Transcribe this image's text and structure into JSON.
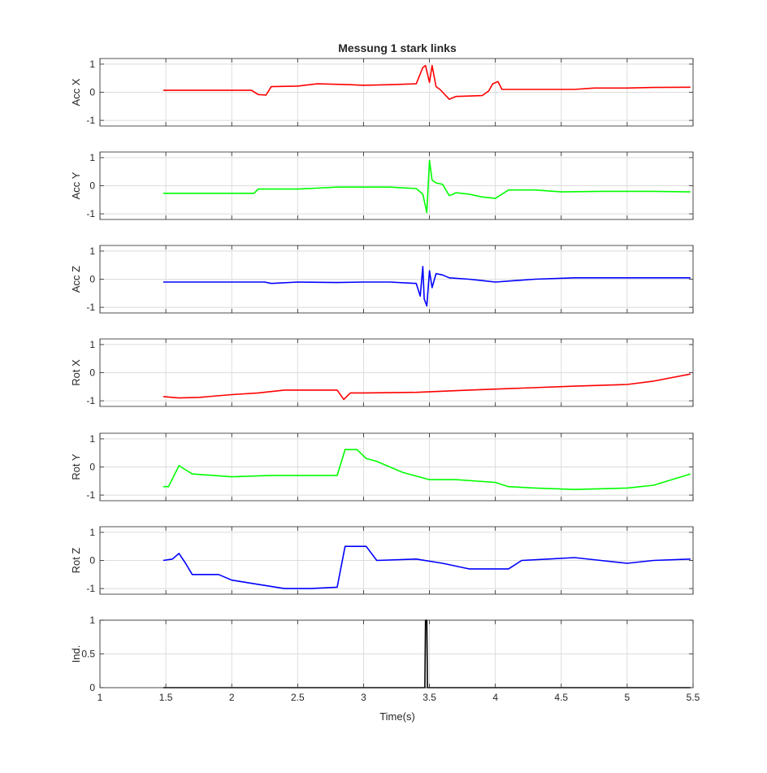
{
  "figure": {
    "title": "Messung 1 stark links",
    "xlabel": "Time(s)",
    "background": "#ffffff",
    "axes_color": "#262626",
    "grid_color": "#dcdcdc"
  },
  "chart_data": [
    {
      "type": "line",
      "ylabel": "Acc X",
      "color": "#ff0000",
      "xlim": [
        1,
        5.5
      ],
      "ylim": [
        -1.2,
        1.2
      ],
      "x_ticks": [
        1,
        1.5,
        2,
        2.5,
        3,
        3.5,
        4,
        4.5,
        5,
        5.5
      ],
      "y_ticks": [
        -1,
        0,
        1
      ],
      "y_tick_labels": [
        "-1",
        "0",
        "1"
      ],
      "x_tick_labels": [],
      "grid": true,
      "series": [
        {
          "x": [
            1.48,
            1.9,
            2.15,
            2.2,
            2.26,
            2.3,
            2.5,
            2.65,
            2.9,
            3.0,
            3.2,
            3.4,
            3.45,
            3.47,
            3.5,
            3.52,
            3.55,
            3.58,
            3.65,
            3.7,
            3.9,
            3.95,
            3.98,
            4.02,
            4.05,
            4.2,
            4.6,
            4.75,
            5.0,
            5.2,
            5.48
          ],
          "y": [
            0.07,
            0.07,
            0.07,
            -0.08,
            -0.1,
            0.2,
            0.22,
            0.3,
            0.27,
            0.25,
            0.27,
            0.3,
            0.88,
            0.95,
            0.35,
            0.95,
            0.2,
            0.1,
            -0.25,
            -0.15,
            -0.12,
            0.05,
            0.3,
            0.38,
            0.1,
            0.1,
            0.1,
            0.15,
            0.15,
            0.17,
            0.18
          ]
        }
      ]
    },
    {
      "type": "line",
      "ylabel": "Acc Y",
      "color": "#00ff00",
      "xlim": [
        1,
        5.5
      ],
      "ylim": [
        -1.2,
        1.2
      ],
      "x_ticks": [
        1,
        1.5,
        2,
        2.5,
        3,
        3.5,
        4,
        4.5,
        5,
        5.5
      ],
      "y_ticks": [
        -1,
        0,
        1
      ],
      "y_tick_labels": [
        "-1",
        "0",
        "1"
      ],
      "x_tick_labels": [],
      "grid": true,
      "series": [
        {
          "x": [
            1.48,
            2.0,
            2.17,
            2.2,
            2.5,
            2.8,
            3.0,
            3.2,
            3.4,
            3.45,
            3.48,
            3.5,
            3.52,
            3.55,
            3.6,
            3.65,
            3.68,
            3.7,
            3.8,
            3.9,
            4.0,
            4.1,
            4.3,
            4.5,
            4.8,
            5.0,
            5.2,
            5.48
          ],
          "y": [
            -0.27,
            -0.27,
            -0.27,
            -0.12,
            -0.12,
            -0.05,
            -0.05,
            -0.05,
            -0.1,
            -0.3,
            -0.95,
            0.9,
            0.2,
            0.1,
            0.05,
            -0.35,
            -0.3,
            -0.25,
            -0.3,
            -0.4,
            -0.45,
            -0.15,
            -0.15,
            -0.22,
            -0.2,
            -0.2,
            -0.2,
            -0.22
          ]
        }
      ]
    },
    {
      "type": "line",
      "ylabel": "Acc Z",
      "color": "#0000ff",
      "xlim": [
        1,
        5.5
      ],
      "ylim": [
        -1.2,
        1.2
      ],
      "x_ticks": [
        1,
        1.5,
        2,
        2.5,
        3,
        3.5,
        4,
        4.5,
        5,
        5.5
      ],
      "y_ticks": [
        -1,
        0,
        1
      ],
      "y_tick_labels": [
        "-1",
        "0",
        "1"
      ],
      "x_tick_labels": [],
      "grid": true,
      "series": [
        {
          "x": [
            1.48,
            2.0,
            2.25,
            2.3,
            2.5,
            2.8,
            3.0,
            3.2,
            3.4,
            3.43,
            3.45,
            3.46,
            3.48,
            3.5,
            3.52,
            3.55,
            3.6,
            3.65,
            3.8,
            3.9,
            4.0,
            4.3,
            4.6,
            5.0,
            5.48
          ],
          "y": [
            -0.1,
            -0.1,
            -0.1,
            -0.15,
            -0.1,
            -0.12,
            -0.1,
            -0.1,
            -0.15,
            -0.6,
            0.45,
            -0.7,
            -0.95,
            0.3,
            -0.3,
            0.2,
            0.15,
            0.05,
            0.0,
            -0.05,
            -0.1,
            0.0,
            0.05,
            0.05,
            0.05
          ]
        }
      ]
    },
    {
      "type": "line",
      "ylabel": "Rot X",
      "color": "#ff0000",
      "xlim": [
        1,
        5.5
      ],
      "ylim": [
        -1.2,
        1.2
      ],
      "x_ticks": [
        1,
        1.5,
        2,
        2.5,
        3,
        3.5,
        4,
        4.5,
        5,
        5.5
      ],
      "y_ticks": [
        -1,
        0,
        1
      ],
      "y_tick_labels": [
        "-1",
        "0",
        "1"
      ],
      "x_tick_labels": [],
      "grid": true,
      "series": [
        {
          "x": [
            1.48,
            1.6,
            1.75,
            2.0,
            2.2,
            2.4,
            2.8,
            2.85,
            2.9,
            3.0,
            3.4,
            3.8,
            4.2,
            4.6,
            5.0,
            5.2,
            5.48
          ],
          "y": [
            -0.85,
            -0.9,
            -0.88,
            -0.78,
            -0.72,
            -0.62,
            -0.62,
            -0.95,
            -0.72,
            -0.72,
            -0.7,
            -0.62,
            -0.55,
            -0.48,
            -0.42,
            -0.3,
            -0.05
          ]
        }
      ]
    },
    {
      "type": "line",
      "ylabel": "Rot Y",
      "color": "#00ff00",
      "xlim": [
        1,
        5.5
      ],
      "ylim": [
        -1.2,
        1.2
      ],
      "x_ticks": [
        1,
        1.5,
        2,
        2.5,
        3,
        3.5,
        4,
        4.5,
        5,
        5.5
      ],
      "y_ticks": [
        -1,
        0,
        1
      ],
      "y_tick_labels": [
        "-1",
        "0",
        "1"
      ],
      "x_tick_labels": [],
      "grid": true,
      "series": [
        {
          "x": [
            1.48,
            1.52,
            1.6,
            1.65,
            1.7,
            2.0,
            2.3,
            2.8,
            2.86,
            2.95,
            3.02,
            3.1,
            3.2,
            3.3,
            3.5,
            3.7,
            4.0,
            4.1,
            4.3,
            4.6,
            5.0,
            5.2,
            5.48
          ],
          "y": [
            -0.7,
            -0.7,
            0.05,
            -0.1,
            -0.25,
            -0.35,
            -0.3,
            -0.3,
            0.62,
            0.62,
            0.3,
            0.2,
            0.0,
            -0.2,
            -0.45,
            -0.45,
            -0.55,
            -0.7,
            -0.75,
            -0.8,
            -0.75,
            -0.65,
            -0.25
          ]
        }
      ]
    },
    {
      "type": "line",
      "ylabel": "Rot Z",
      "color": "#0000ff",
      "xlim": [
        1,
        5.5
      ],
      "ylim": [
        -1.2,
        1.2
      ],
      "x_ticks": [
        1,
        1.5,
        2,
        2.5,
        3,
        3.5,
        4,
        4.5,
        5,
        5.5
      ],
      "y_ticks": [
        -1,
        0,
        1
      ],
      "y_tick_labels": [
        "-1",
        "0",
        "1"
      ],
      "x_tick_labels": [],
      "grid": true,
      "series": [
        {
          "x": [
            1.48,
            1.55,
            1.6,
            1.65,
            1.7,
            1.9,
            2.0,
            2.2,
            2.4,
            2.6,
            2.8,
            2.86,
            3.02,
            3.1,
            3.4,
            3.6,
            3.8,
            4.1,
            4.2,
            4.4,
            4.6,
            4.8,
            5.0,
            5.2,
            5.48
          ],
          "y": [
            0.0,
            0.05,
            0.25,
            -0.1,
            -0.5,
            -0.5,
            -0.7,
            -0.85,
            -1.0,
            -1.0,
            -0.95,
            0.5,
            0.5,
            0.0,
            0.05,
            -0.1,
            -0.3,
            -0.3,
            0.0,
            0.05,
            0.1,
            0.0,
            -0.1,
            0.0,
            0.05
          ]
        }
      ]
    },
    {
      "type": "line",
      "ylabel": "Ind.",
      "color": "#000000",
      "xlim": [
        1,
        5.5
      ],
      "ylim": [
        0,
        1
      ],
      "x_ticks": [
        1,
        1.5,
        2,
        2.5,
        3,
        3.5,
        4,
        4.5,
        5,
        5.5
      ],
      "y_ticks": [
        0,
        0.5,
        1
      ],
      "y_tick_labels": [
        "0",
        "0.5",
        "1"
      ],
      "x_tick_labels": [
        "1",
        "1.5",
        "2",
        "2.5",
        "3",
        "3.5",
        "4",
        "4.5",
        "5",
        "5.5"
      ],
      "grid": true,
      "series": [
        {
          "x": [
            1.48,
            3.465,
            3.47,
            3.48,
            3.485,
            5.48
          ],
          "y": [
            0,
            0,
            1,
            1,
            0,
            0
          ]
        }
      ]
    }
  ]
}
